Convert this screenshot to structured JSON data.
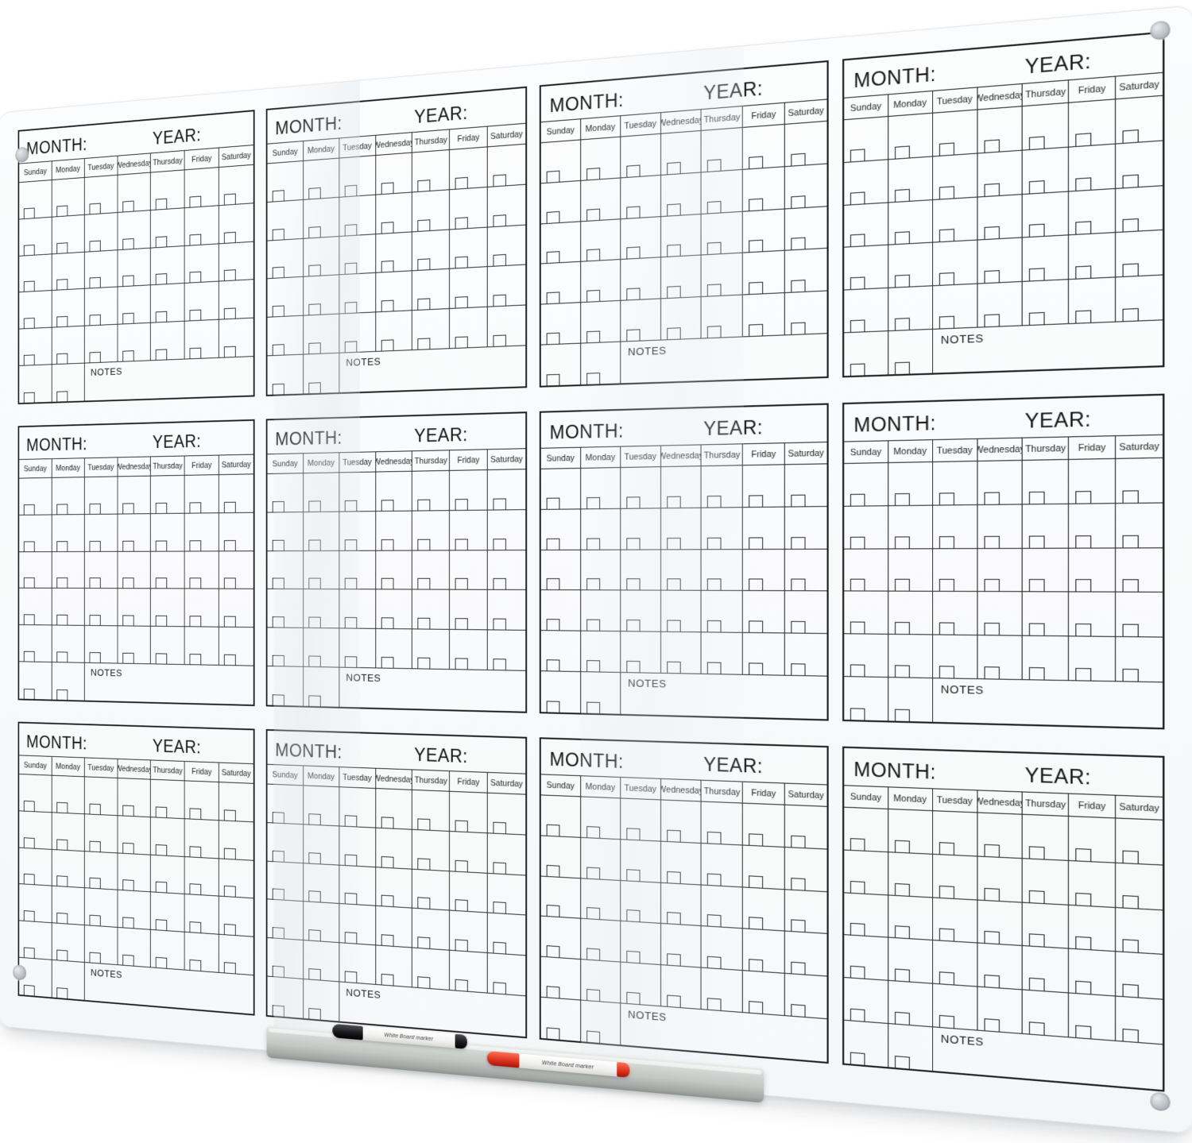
{
  "board": {
    "layout": {
      "columns": 4,
      "rows": 3,
      "calendar_count": 12
    },
    "calendar": {
      "month_label": "MONTH:",
      "year_label": "YEAR:",
      "day_headers": [
        "Sunday",
        "Monday",
        "Tuesday",
        "Wednesday",
        "Thursday",
        "Friday",
        "Saturday"
      ],
      "week_rows": 6,
      "notes_label": "NOTES",
      "notes_span_columns": [
        3,
        7
      ]
    },
    "screws": {
      "count": 4,
      "positions": [
        "top-left",
        "top-right",
        "bottom-left",
        "bottom-right"
      ]
    },
    "colors": {
      "background": "#ffffff",
      "board_surface": "#fafbfc",
      "grid_line": "#2a2a2a",
      "tray_silver": "#c3c7c4",
      "marker_black": "#1a1a1c",
      "marker_red": "#da3420",
      "screw_gray": "#aeb4ba"
    }
  },
  "tray": {
    "markers": [
      {
        "color_name": "black",
        "label": "White Board marker"
      },
      {
        "color_name": "red",
        "label": "White Board marker"
      }
    ]
  }
}
